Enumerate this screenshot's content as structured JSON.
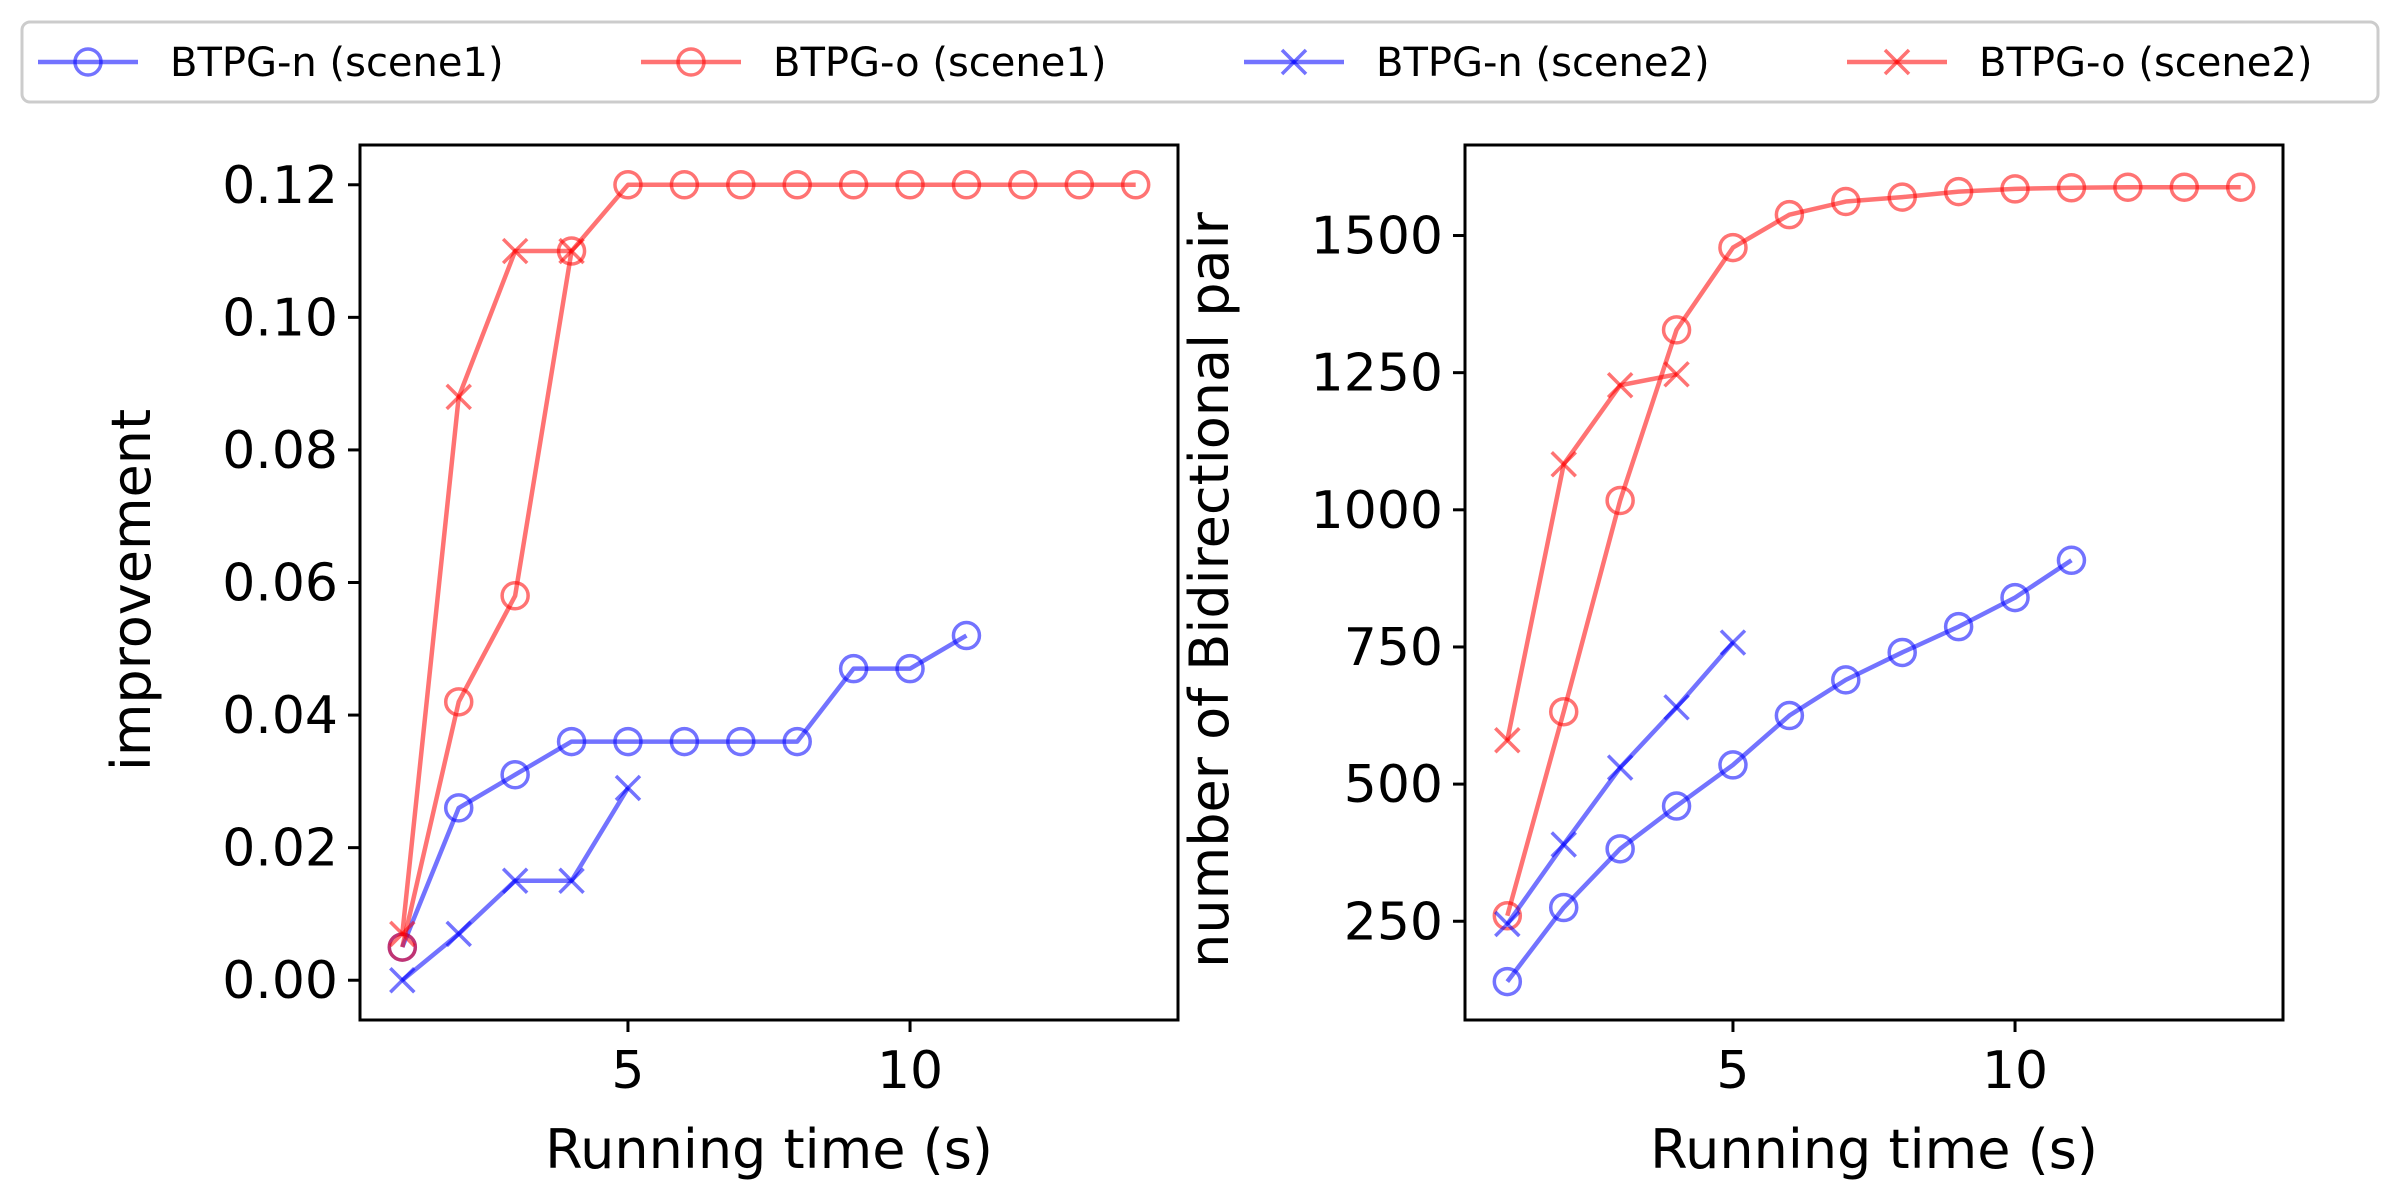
{
  "colors": {
    "n": "#0000ff",
    "o": "#ff0000"
  },
  "legend": {
    "placement": "top",
    "entries": [
      {
        "label": "BTPG-n (scene1)",
        "color": "#0000ff",
        "marker": "circle"
      },
      {
        "label": "BTPG-o (scene1)",
        "color": "#ff0000",
        "marker": "circle"
      },
      {
        "label": "BTPG-n (scene2)",
        "color": "#0000ff",
        "marker": "x"
      },
      {
        "label": "BTPG-o (scene2)",
        "color": "#ff0000",
        "marker": "x"
      }
    ]
  },
  "chart_data": [
    {
      "type": "line",
      "xlabel": "Running time (s)",
      "ylabel": "improvement",
      "xlim": [
        0.25,
        14.75
      ],
      "ylim": [
        -0.006,
        0.126
      ],
      "xticks": [
        5,
        10
      ],
      "xtick_labels": [
        "5",
        "10"
      ],
      "yticks": [
        0.0,
        0.02,
        0.04,
        0.06,
        0.08,
        0.1,
        0.12
      ],
      "ytick_labels": [
        "0.00",
        "0.02",
        "0.04",
        "0.06",
        "0.08",
        "0.10",
        "0.12"
      ],
      "grid": false,
      "series": [
        {
          "name": "BTPG-n (scene1)",
          "marker": "circle",
          "color": "#0000ff",
          "x": [
            1,
            2,
            3,
            4,
            5,
            6,
            7,
            8,
            9,
            10,
            11
          ],
          "y": [
            0.005,
            0.026,
            0.031,
            0.036,
            0.036,
            0.036,
            0.036,
            0.036,
            0.047,
            0.047,
            0.052
          ]
        },
        {
          "name": "BTPG-o (scene1)",
          "marker": "circle",
          "color": "#ff0000",
          "x": [
            1,
            2,
            3,
            4,
            5,
            6,
            7,
            8,
            9,
            10,
            11,
            12,
            13,
            14
          ],
          "y": [
            0.005,
            0.042,
            0.058,
            0.11,
            0.12,
            0.12,
            0.12,
            0.12,
            0.12,
            0.12,
            0.12,
            0.12,
            0.12,
            0.12
          ]
        },
        {
          "name": "BTPG-n (scene2)",
          "marker": "x",
          "color": "#0000ff",
          "x": [
            1,
            2,
            3,
            4,
            5
          ],
          "y": [
            0.0,
            0.007,
            0.015,
            0.015,
            0.029
          ]
        },
        {
          "name": "BTPG-o (scene2)",
          "marker": "x",
          "color": "#ff0000",
          "x": [
            1,
            2,
            3,
            4
          ],
          "y": [
            0.007,
            0.088,
            0.11,
            0.11
          ]
        }
      ]
    },
    {
      "type": "line",
      "xlabel": "Running time (s)",
      "ylabel": "number of Bidirectional pair",
      "xlim": [
        0.25,
        14.75
      ],
      "ylim": [
        70,
        1665
      ],
      "xticks": [
        5,
        10
      ],
      "xtick_labels": [
        "5",
        "10"
      ],
      "yticks": [
        250,
        500,
        750,
        1000,
        1250,
        1500
      ],
      "ytick_labels": [
        "250",
        "500",
        "750",
        "1000",
        "1250",
        "1500"
      ],
      "grid": false,
      "series": [
        {
          "name": "BTPG-n (scene1)",
          "marker": "circle",
          "color": "#0000ff",
          "x": [
            1,
            2,
            3,
            4,
            5,
            6,
            7,
            8,
            9,
            10,
            11
          ],
          "y": [
            140,
            275,
            382,
            460,
            535,
            625,
            690,
            740,
            787,
            840,
            908
          ]
        },
        {
          "name": "BTPG-o (scene1)",
          "marker": "circle",
          "color": "#ff0000",
          "x": [
            1,
            2,
            3,
            4,
            5,
            6,
            7,
            8,
            9,
            10,
            11,
            12,
            13,
            14
          ],
          "y": [
            260,
            632,
            1017,
            1328,
            1478,
            1538,
            1562,
            1570,
            1580,
            1585,
            1587,
            1588,
            1588,
            1588
          ]
        },
        {
          "name": "BTPG-n (scene2)",
          "marker": "x",
          "color": "#0000ff",
          "x": [
            1,
            2,
            3,
            4,
            5
          ],
          "y": [
            245,
            390,
            530,
            640,
            758
          ]
        },
        {
          "name": "BTPG-o (scene2)",
          "marker": "x",
          "color": "#ff0000",
          "x": [
            1,
            2,
            3,
            4
          ],
          "y": [
            580,
            1083,
            1227,
            1247
          ]
        }
      ]
    }
  ]
}
